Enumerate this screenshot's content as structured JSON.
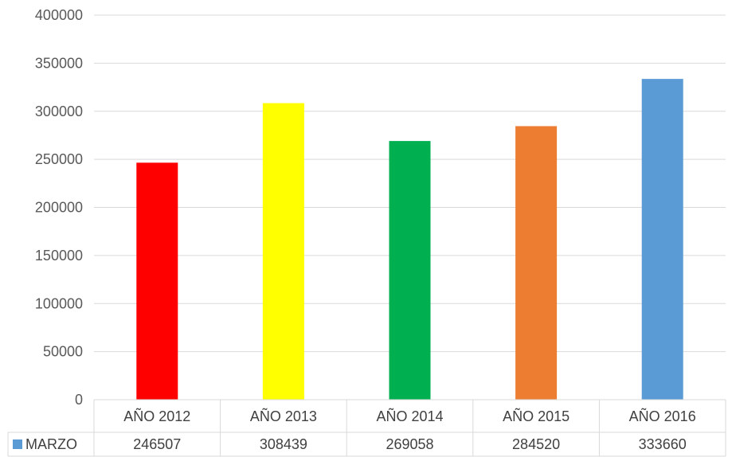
{
  "chart_data": {
    "type": "bar",
    "categories": [
      "AÑO 2012",
      "AÑO 2013",
      "AÑO 2014",
      "AÑO 2015",
      "AÑO 2016"
    ],
    "series": [
      {
        "name": "MARZO",
        "values": [
          246507,
          308439,
          269058,
          284520,
          333660
        ],
        "color": "#5b9bd5"
      }
    ],
    "bar_colors": [
      "#ff0000",
      "#ffff00",
      "#00b050",
      "#ed7d31",
      "#5b9bd5"
    ],
    "ylim": [
      0,
      400000
    ],
    "yticks": [
      "0",
      "50000",
      "100000",
      "150000",
      "200000",
      "250000",
      "300000",
      "350000",
      "400000"
    ],
    "grid": true,
    "legend": "data-table"
  }
}
